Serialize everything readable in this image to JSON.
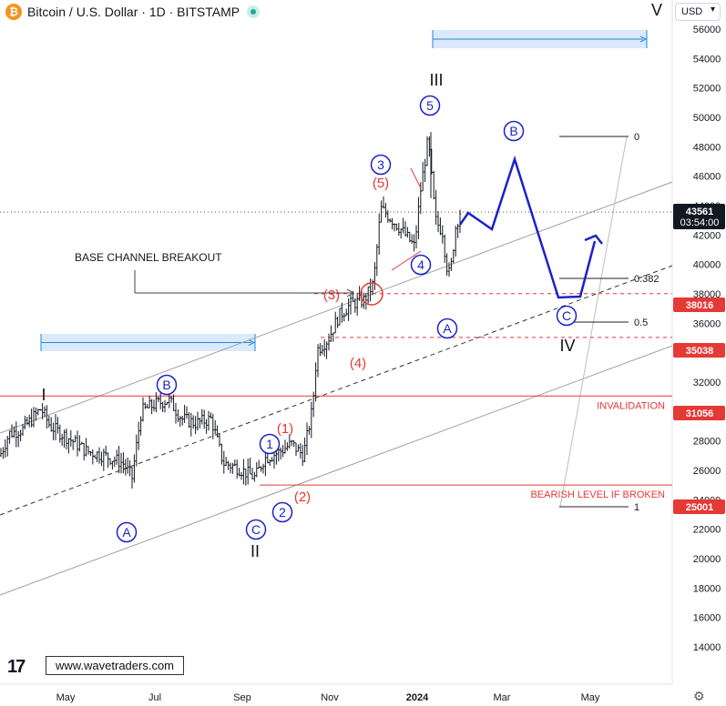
{
  "header": {
    "coin_symbol": "₿",
    "title": "Bitcoin / U.S. Dollar · 1D · BITSTAMP",
    "currency": "USD",
    "currency_caret": "▾"
  },
  "watermark": "www.wavetraders.com",
  "tv_logo": "17",
  "settings_icon": "⚙",
  "chart_data": {
    "type": "line",
    "y_axis": {
      "ticks": [
        14000,
        16000,
        18000,
        20000,
        22000,
        24000,
        26000,
        28000,
        30000,
        32000,
        34000,
        36000,
        38000,
        40000,
        42000,
        44000,
        46000,
        48000,
        50000,
        52000,
        54000,
        56000
      ],
      "ylim": [
        13200,
        57000
      ],
      "scale": "linear"
    },
    "x_axis": {
      "ticks": [
        "May",
        "Jul",
        "Sep",
        "Nov",
        "2024",
        "Mar",
        "May"
      ],
      "bold": [
        "2024"
      ]
    },
    "price_badges": [
      {
        "label": "43561",
        "sub": "03:54:00",
        "color": "#131722"
      },
      {
        "label": "38016",
        "color": "#e53935"
      },
      {
        "label": "35038",
        "color": "#e53935"
      },
      {
        "label": "31056",
        "color": "#e53935"
      },
      {
        "label": "25001",
        "color": "#e53935"
      }
    ],
    "levels": [
      {
        "value": 31056,
        "label": "INVALIDATION"
      },
      {
        "value": 25001,
        "label": "BEARISH LEVEL IF BROKEN"
      },
      {
        "value": 38016,
        "label": ""
      },
      {
        "value": 35038,
        "label": ""
      }
    ],
    "fib_labels": [
      "0",
      "0.382",
      "0.5",
      "1"
    ],
    "projection_points": [
      [
        43561,
        "Jan"
      ],
      [
        44000,
        "Jan"
      ],
      [
        43000,
        "Feb"
      ],
      [
        47400,
        "Feb"
      ],
      [
        37700,
        "Apr"
      ],
      [
        37800,
        "Apr"
      ],
      [
        42300,
        "Apr"
      ]
    ],
    "waves": {
      "primary": [
        "I",
        "II",
        "III",
        "IV",
        "V"
      ],
      "circled_blue": [
        "A",
        "B",
        "C",
        "1",
        "2",
        "3",
        "4",
        "5",
        "A",
        "B",
        "C"
      ],
      "red": [
        "(1)",
        "(2)",
        "(3)",
        "(4)",
        "(5)"
      ]
    },
    "annotations": [
      "BASE CHANNEL BREAKOUT"
    ],
    "colors": {
      "up": "#131722",
      "down": "#131722",
      "projection": "#1a22c8",
      "levels": "#e53935",
      "channel": "#9e9e9e",
      "range_box": "#1e88e5"
    }
  }
}
